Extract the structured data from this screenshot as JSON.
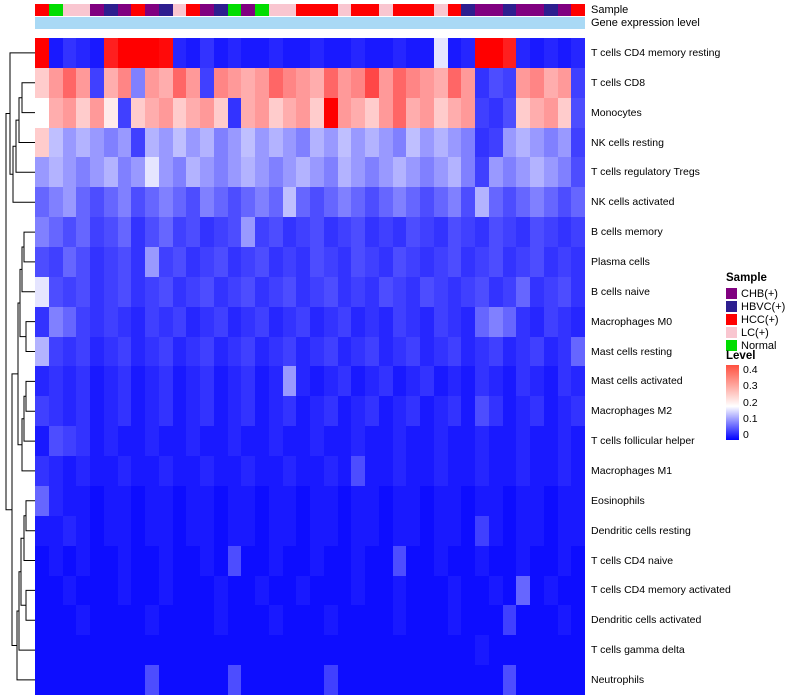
{
  "annotation_bars": {
    "sample_label": "Sample",
    "gene_expression_label": "Gene expression level",
    "gene_expression_color": "#a9d9f5"
  },
  "legend_sample": {
    "title": "Sample",
    "items": [
      {
        "label": "CHB(+)",
        "color": "#800080"
      },
      {
        "label": "HBVC(+)",
        "color": "#2d1e8f"
      },
      {
        "label": "HCC(+)",
        "color": "#ff0000"
      },
      {
        "label": "LC(+)",
        "color": "#f9c6d0"
      },
      {
        "label": "Normal",
        "color": "#00dd00"
      }
    ]
  },
  "legend_level": {
    "title": "Level",
    "ticks": [
      "0.4",
      "0.3",
      "0.2",
      "0.1",
      "0"
    ],
    "gradient": [
      "#ff5040",
      "#ffffff",
      "#0000ff"
    ]
  },
  "chart_data": {
    "type": "heatmap",
    "title": "",
    "rows": [
      "T cells CD4 memory resting",
      "T cells CD8",
      "Monocytes",
      "NK cells resting",
      "T cells regulatory Tregs",
      "NK cells activated",
      "B cells memory",
      "Plasma cells",
      "B cells naive",
      "Macrophages M0",
      "Mast cells resting",
      "Mast cells activated",
      "Macrophages M2",
      "T cells follicular helper",
      "Macrophages M1",
      "Eosinophils",
      "Dendritic cells resting",
      "T cells CD4 naive",
      "T cells CD4 memory activated",
      "Dendritic cells activated",
      "T cells gamma delta",
      "Neutrophils"
    ],
    "column_annotation": [
      "HCC(+)",
      "Normal",
      "LC(+)",
      "LC(+)",
      "CHB(+)",
      "HBVC(+)",
      "CHB(+)",
      "HCC(+)",
      "CHB(+)",
      "HBVC(+)",
      "LC(+)",
      "HCC(+)",
      "CHB(+)",
      "HBVC(+)",
      "Normal",
      "CHB(+)",
      "Normal",
      "LC(+)",
      "LC(+)",
      "HCC(+)",
      "HCC(+)",
      "HCC(+)",
      "LC(+)",
      "HCC(+)",
      "HCC(+)",
      "LC(+)",
      "HCC(+)",
      "HCC(+)",
      "HCC(+)",
      "LC(+)",
      "HCC(+)",
      "HBVC(+)",
      "CHB(+)",
      "CHB(+)",
      "HBVC(+)",
      "CHB(+)",
      "CHB(+)",
      "HBVC(+)",
      "CHB(+)",
      "HCC(+)"
    ],
    "color_scale": {
      "min": 0,
      "mid": 0.2,
      "max": 0.45,
      "min_color": "#0000ff",
      "mid_color": "#ffffff",
      "max_color": "#ff0000"
    },
    "values": [
      [
        0.45,
        0.02,
        0.04,
        0.03,
        0.02,
        0.42,
        0.48,
        0.5,
        0.46,
        0.44,
        0.03,
        0.02,
        0.04,
        0.02,
        0.03,
        0.02,
        0.02,
        0.03,
        0.02,
        0.02,
        0.03,
        0.02,
        0.02,
        0.03,
        0.02,
        0.02,
        0.03,
        0.02,
        0.02,
        0.18,
        0.02,
        0.03,
        0.5,
        0.46,
        0.42,
        0.03,
        0.02,
        0.03,
        0.02,
        0.03
      ],
      [
        0.25,
        0.3,
        0.35,
        0.3,
        0.05,
        0.28,
        0.32,
        0.1,
        0.3,
        0.28,
        0.35,
        0.3,
        0.05,
        0.32,
        0.3,
        0.28,
        0.3,
        0.35,
        0.32,
        0.3,
        0.28,
        0.35,
        0.3,
        0.32,
        0.38,
        0.3,
        0.35,
        0.32,
        0.3,
        0.28,
        0.35,
        0.3,
        0.04,
        0.06,
        0.05,
        0.3,
        0.32,
        0.28,
        0.3,
        0.05
      ],
      [
        0.2,
        0.28,
        0.3,
        0.25,
        0.3,
        0.22,
        0.05,
        0.25,
        0.28,
        0.3,
        0.25,
        0.28,
        0.3,
        0.25,
        0.04,
        0.28,
        0.3,
        0.25,
        0.28,
        0.3,
        0.25,
        0.45,
        0.3,
        0.28,
        0.25,
        0.3,
        0.35,
        0.28,
        0.3,
        0.25,
        0.28,
        0.3,
        0.05,
        0.04,
        0.06,
        0.25,
        0.28,
        0.3,
        0.25,
        0.06
      ],
      [
        0.25,
        0.15,
        0.12,
        0.14,
        0.12,
        0.1,
        0.12,
        0.05,
        0.14,
        0.12,
        0.15,
        0.12,
        0.14,
        0.1,
        0.12,
        0.15,
        0.12,
        0.14,
        0.12,
        0.1,
        0.14,
        0.12,
        0.15,
        0.12,
        0.14,
        0.12,
        0.1,
        0.15,
        0.12,
        0.14,
        0.12,
        0.1,
        0.04,
        0.05,
        0.12,
        0.14,
        0.12,
        0.1,
        0.12,
        0.05
      ],
      [
        0.12,
        0.14,
        0.12,
        0.1,
        0.12,
        0.14,
        0.1,
        0.12,
        0.18,
        0.12,
        0.1,
        0.14,
        0.12,
        0.1,
        0.12,
        0.14,
        0.12,
        0.1,
        0.12,
        0.14,
        0.12,
        0.1,
        0.14,
        0.12,
        0.1,
        0.12,
        0.14,
        0.12,
        0.1,
        0.12,
        0.14,
        0.1,
        0.05,
        0.12,
        0.1,
        0.12,
        0.14,
        0.12,
        0.1,
        0.06
      ],
      [
        0.08,
        0.1,
        0.12,
        0.08,
        0.06,
        0.08,
        0.1,
        0.06,
        0.08,
        0.1,
        0.08,
        0.06,
        0.1,
        0.08,
        0.06,
        0.08,
        0.1,
        0.08,
        0.15,
        0.08,
        0.06,
        0.08,
        0.1,
        0.08,
        0.06,
        0.08,
        0.1,
        0.08,
        0.06,
        0.08,
        0.1,
        0.06,
        0.14,
        0.08,
        0.06,
        0.08,
        0.1,
        0.08,
        0.06,
        0.08
      ],
      [
        0.1,
        0.08,
        0.06,
        0.08,
        0.05,
        0.06,
        0.08,
        0.04,
        0.06,
        0.08,
        0.05,
        0.06,
        0.04,
        0.05,
        0.06,
        0.12,
        0.05,
        0.06,
        0.04,
        0.05,
        0.06,
        0.04,
        0.05,
        0.06,
        0.04,
        0.05,
        0.04,
        0.06,
        0.05,
        0.04,
        0.06,
        0.05,
        0.04,
        0.06,
        0.05,
        0.04,
        0.06,
        0.05,
        0.04,
        0.05
      ],
      [
        0.06,
        0.05,
        0.08,
        0.06,
        0.04,
        0.05,
        0.06,
        0.04,
        0.12,
        0.05,
        0.06,
        0.04,
        0.05,
        0.06,
        0.04,
        0.05,
        0.06,
        0.04,
        0.05,
        0.04,
        0.06,
        0.05,
        0.04,
        0.06,
        0.05,
        0.04,
        0.06,
        0.05,
        0.04,
        0.05,
        0.06,
        0.04,
        0.05,
        0.06,
        0.04,
        0.05,
        0.06,
        0.04,
        0.05,
        0.04
      ],
      [
        0.18,
        0.06,
        0.05,
        0.06,
        0.04,
        0.05,
        0.06,
        0.04,
        0.05,
        0.06,
        0.04,
        0.05,
        0.06,
        0.04,
        0.05,
        0.06,
        0.04,
        0.05,
        0.06,
        0.04,
        0.05,
        0.06,
        0.04,
        0.05,
        0.04,
        0.06,
        0.05,
        0.04,
        0.06,
        0.05,
        0.04,
        0.05,
        0.06,
        0.04,
        0.05,
        0.08,
        0.04,
        0.05,
        0.06,
        0.04
      ],
      [
        0.04,
        0.1,
        0.08,
        0.05,
        0.04,
        0.05,
        0.04,
        0.03,
        0.05,
        0.04,
        0.05,
        0.03,
        0.04,
        0.05,
        0.03,
        0.04,
        0.05,
        0.03,
        0.04,
        0.05,
        0.03,
        0.04,
        0.05,
        0.03,
        0.04,
        0.03,
        0.05,
        0.04,
        0.03,
        0.05,
        0.04,
        0.03,
        0.08,
        0.1,
        0.08,
        0.04,
        0.03,
        0.05,
        0.04,
        0.03
      ],
      [
        0.14,
        0.05,
        0.04,
        0.05,
        0.03,
        0.04,
        0.05,
        0.03,
        0.04,
        0.05,
        0.03,
        0.04,
        0.05,
        0.03,
        0.04,
        0.05,
        0.03,
        0.04,
        0.05,
        0.03,
        0.04,
        0.05,
        0.03,
        0.04,
        0.05,
        0.03,
        0.04,
        0.05,
        0.03,
        0.04,
        0.05,
        0.03,
        0.04,
        0.05,
        0.03,
        0.04,
        0.05,
        0.03,
        0.04,
        0.08
      ],
      [
        0.03,
        0.04,
        0.03,
        0.04,
        0.02,
        0.03,
        0.04,
        0.02,
        0.03,
        0.04,
        0.02,
        0.03,
        0.04,
        0.02,
        0.03,
        0.04,
        0.02,
        0.03,
        0.12,
        0.03,
        0.02,
        0.03,
        0.04,
        0.02,
        0.03,
        0.04,
        0.02,
        0.03,
        0.04,
        0.02,
        0.03,
        0.02,
        0.04,
        0.03,
        0.02,
        0.04,
        0.03,
        0.02,
        0.04,
        0.03
      ],
      [
        0.05,
        0.04,
        0.03,
        0.04,
        0.02,
        0.03,
        0.04,
        0.02,
        0.03,
        0.04,
        0.02,
        0.03,
        0.04,
        0.02,
        0.03,
        0.04,
        0.02,
        0.03,
        0.04,
        0.02,
        0.03,
        0.04,
        0.02,
        0.03,
        0.04,
        0.02,
        0.03,
        0.04,
        0.02,
        0.03,
        0.04,
        0.02,
        0.06,
        0.04,
        0.02,
        0.03,
        0.04,
        0.02,
        0.03,
        0.04
      ],
      [
        0.02,
        0.06,
        0.05,
        0.04,
        0.02,
        0.03,
        0.02,
        0.02,
        0.03,
        0.02,
        0.02,
        0.03,
        0.02,
        0.02,
        0.03,
        0.02,
        0.02,
        0.03,
        0.02,
        0.02,
        0.03,
        0.02,
        0.02,
        0.03,
        0.02,
        0.02,
        0.03,
        0.02,
        0.02,
        0.03,
        0.02,
        0.02,
        0.03,
        0.02,
        0.02,
        0.03,
        0.02,
        0.02,
        0.03,
        0.02
      ],
      [
        0.04,
        0.03,
        0.02,
        0.03,
        0.02,
        0.02,
        0.03,
        0.02,
        0.02,
        0.03,
        0.02,
        0.02,
        0.03,
        0.02,
        0.02,
        0.03,
        0.02,
        0.02,
        0.03,
        0.02,
        0.02,
        0.03,
        0.02,
        0.06,
        0.02,
        0.02,
        0.03,
        0.02,
        0.02,
        0.03,
        0.02,
        0.02,
        0.03,
        0.02,
        0.02,
        0.03,
        0.02,
        0.02,
        0.03,
        0.02
      ],
      [
        0.08,
        0.03,
        0.02,
        0.02,
        0.01,
        0.02,
        0.02,
        0.01,
        0.02,
        0.02,
        0.01,
        0.02,
        0.02,
        0.01,
        0.02,
        0.02,
        0.01,
        0.02,
        0.02,
        0.01,
        0.02,
        0.02,
        0.01,
        0.02,
        0.02,
        0.01,
        0.02,
        0.02,
        0.01,
        0.02,
        0.02,
        0.01,
        0.02,
        0.02,
        0.01,
        0.02,
        0.02,
        0.01,
        0.02,
        0.02
      ],
      [
        0.02,
        0.02,
        0.03,
        0.02,
        0.01,
        0.02,
        0.02,
        0.01,
        0.02,
        0.02,
        0.01,
        0.02,
        0.02,
        0.01,
        0.02,
        0.02,
        0.01,
        0.02,
        0.02,
        0.01,
        0.02,
        0.02,
        0.01,
        0.02,
        0.02,
        0.01,
        0.02,
        0.02,
        0.01,
        0.02,
        0.02,
        0.01,
        0.05,
        0.02,
        0.01,
        0.02,
        0.02,
        0.01,
        0.02,
        0.02
      ],
      [
        0.01,
        0.02,
        0.01,
        0.02,
        0.01,
        0.01,
        0.02,
        0.01,
        0.01,
        0.02,
        0.01,
        0.01,
        0.02,
        0.01,
        0.06,
        0.01,
        0.01,
        0.02,
        0.01,
        0.01,
        0.02,
        0.01,
        0.01,
        0.02,
        0.01,
        0.01,
        0.06,
        0.01,
        0.01,
        0.02,
        0.01,
        0.01,
        0.02,
        0.01,
        0.01,
        0.02,
        0.01,
        0.01,
        0.02,
        0.01
      ],
      [
        0.01,
        0.01,
        0.02,
        0.01,
        0.01,
        0.01,
        0.02,
        0.01,
        0.01,
        0.02,
        0.01,
        0.01,
        0.01,
        0.02,
        0.01,
        0.01,
        0.02,
        0.01,
        0.01,
        0.02,
        0.01,
        0.01,
        0.01,
        0.02,
        0.01,
        0.01,
        0.02,
        0.01,
        0.01,
        0.01,
        0.02,
        0.01,
        0.01,
        0.02,
        0.01,
        0.08,
        0.01,
        0.02,
        0.01,
        0.01
      ],
      [
        0.01,
        0.01,
        0.01,
        0.02,
        0.01,
        0.01,
        0.01,
        0.01,
        0.02,
        0.01,
        0.01,
        0.01,
        0.01,
        0.02,
        0.01,
        0.01,
        0.01,
        0.02,
        0.01,
        0.01,
        0.01,
        0.02,
        0.01,
        0.01,
        0.01,
        0.01,
        0.02,
        0.01,
        0.01,
        0.01,
        0.02,
        0.01,
        0.01,
        0.01,
        0.05,
        0.01,
        0.01,
        0.01,
        0.02,
        0.01
      ],
      [
        0.01,
        0.01,
        0.01,
        0.01,
        0.01,
        0.01,
        0.01,
        0.01,
        0.01,
        0.01,
        0.01,
        0.01,
        0.01,
        0.01,
        0.01,
        0.01,
        0.01,
        0.01,
        0.01,
        0.01,
        0.01,
        0.01,
        0.01,
        0.01,
        0.01,
        0.01,
        0.01,
        0.01,
        0.01,
        0.01,
        0.01,
        0.01,
        0.02,
        0.01,
        0.01,
        0.01,
        0.01,
        0.01,
        0.01,
        0.01
      ],
      [
        0.01,
        0.01,
        0.01,
        0.01,
        0.01,
        0.01,
        0.01,
        0.01,
        0.06,
        0.01,
        0.01,
        0.01,
        0.01,
        0.01,
        0.06,
        0.01,
        0.01,
        0.01,
        0.01,
        0.01,
        0.01,
        0.05,
        0.01,
        0.01,
        0.01,
        0.01,
        0.01,
        0.01,
        0.01,
        0.01,
        0.01,
        0.01,
        0.01,
        0.01,
        0.06,
        0.01,
        0.01,
        0.01,
        0.01,
        0.01
      ]
    ]
  }
}
